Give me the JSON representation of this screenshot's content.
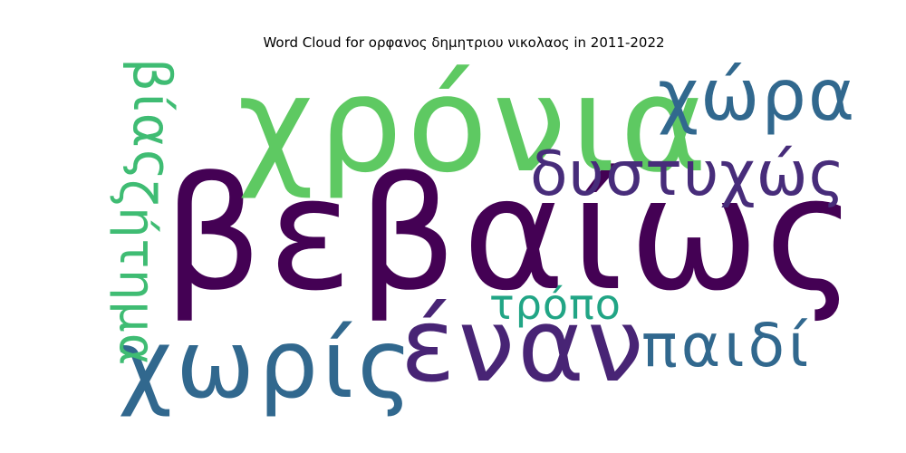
{
  "chart_data": {
    "type": "wordcloud",
    "title": "Word Cloud for ορφανος δημητριου νικολαος in 2011-2022",
    "words": [
      {
        "text": "βεβαίως",
        "color": "#440154",
        "orientation": "horizontal"
      },
      {
        "text": "χρόνια",
        "color": "#5ec962",
        "orientation": "horizontal"
      },
      {
        "text": "χωρίς",
        "color": "#31688e",
        "orientation": "horizontal"
      },
      {
        "text": "έναν",
        "color": "#482475",
        "orientation": "horizontal"
      },
      {
        "text": "χώρα",
        "color": "#31688e",
        "orientation": "horizontal"
      },
      {
        "text": "δυστυχώς",
        "color": "#472c7a",
        "orientation": "horizontal"
      },
      {
        "text": "παιδί",
        "color": "#31688e",
        "orientation": "horizontal"
      },
      {
        "text": "βίας",
        "color": "#3fbc73",
        "orientation": "vertical"
      },
      {
        "text": "ζήτημα",
        "color": "#3fbc73",
        "orientation": "vertical"
      },
      {
        "text": "τρόπο",
        "color": "#21a585",
        "orientation": "horizontal"
      }
    ]
  }
}
